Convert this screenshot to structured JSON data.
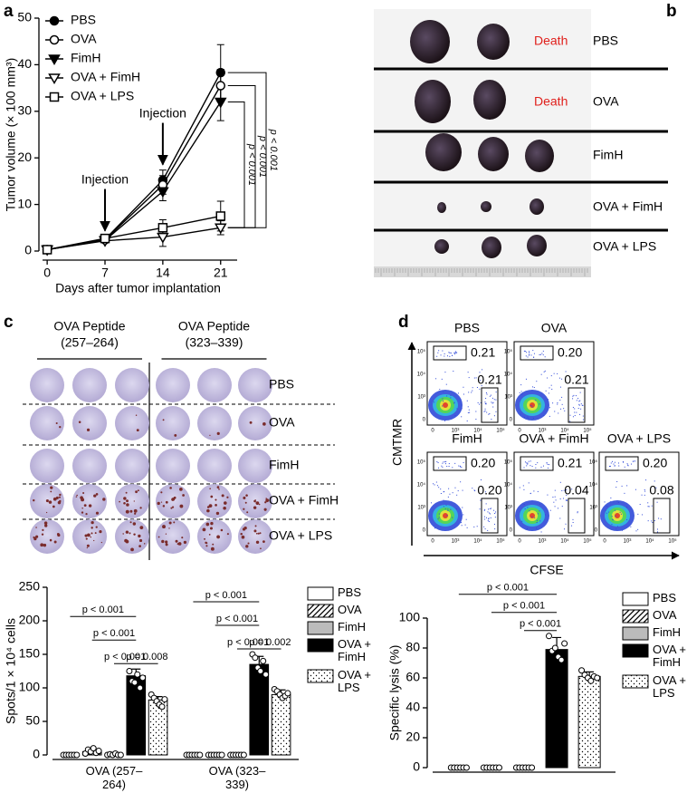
{
  "panel_labels": [
    "a",
    "b",
    "c",
    "d"
  ],
  "chart_data": [
    {
      "type": "line",
      "xlabel": "Days after tumor implantation",
      "ylabel": "Tumor volume (× 100 mm³)",
      "x": [
        0,
        7,
        14,
        21
      ],
      "xlim": [
        -1,
        23
      ],
      "xticks": [
        0,
        7,
        14,
        21
      ],
      "ylim": [
        0,
        50
      ],
      "yticks": [
        0,
        10,
        20,
        30,
        40,
        50
      ],
      "series": [
        {
          "name": "PBS",
          "color": "#000000",
          "marker": "circle",
          "filled": true,
          "values": [
            0.3,
            2.5,
            15.2,
            38.3
          ],
          "errors": [
            0,
            0.3,
            2.2,
            6
          ]
        },
        {
          "name": "OVA",
          "color": "#000000",
          "marker": "circle",
          "filled": false,
          "values": [
            0.3,
            2.4,
            14.2,
            35.5
          ],
          "errors": [
            0,
            0.3,
            2,
            3.5
          ]
        },
        {
          "name": "FimH",
          "color": "#000000",
          "marker": "triangle-down",
          "filled": true,
          "values": [
            0.3,
            2.3,
            12.8,
            32
          ],
          "errors": [
            0,
            0.3,
            2,
            4
          ]
        },
        {
          "name": "OVA + FimH",
          "color": "#000000",
          "marker": "triangle-down",
          "filled": false,
          "values": [
            0.3,
            2.2,
            3,
            5
          ],
          "errors": [
            0,
            0.4,
            2,
            1.5
          ]
        },
        {
          "name": "OVA + LPS",
          "color": "#000000",
          "marker": "square",
          "filled": false,
          "values": [
            0.3,
            2.7,
            5,
            7.5
          ],
          "errors": [
            0,
            0.5,
            1.7,
            3.2
          ]
        }
      ],
      "annotations": [
        "Injection",
        "Injection"
      ],
      "p_values": [
        "p < 0.001",
        "p < 0.001",
        "p < 0.001"
      ]
    },
    {
      "type": "bar",
      "ylabel": "Spots/1 × 10⁴ cells",
      "categories": [
        "OVA (257–264)",
        "OVA (323–339)"
      ],
      "ylim": [
        0,
        250
      ],
      "yticks": [
        0,
        50,
        100,
        150,
        200,
        250
      ],
      "series": [
        {
          "name": "PBS",
          "color": "#ffffff",
          "pattern": "solid",
          "values": [
            0,
            0
          ],
          "errors": [
            0,
            0
          ],
          "points": [
            [
              0,
              0,
              0,
              0,
              0,
              0
            ],
            [
              0,
              0,
              0,
              0,
              0,
              0
            ]
          ]
        },
        {
          "name": "OVA",
          "color": "#ffffff",
          "pattern": "hatch",
          "values": [
            5,
            0
          ],
          "errors": [
            3,
            0
          ],
          "points": [
            [
              2,
              8,
              5,
              10,
              3,
              6
            ],
            [
              0,
              0,
              0,
              0,
              0,
              0
            ]
          ]
        },
        {
          "name": "FimH",
          "color": "#bbbbbb",
          "pattern": "solid",
          "values": [
            0,
            0
          ],
          "errors": [
            0,
            0
          ],
          "points": [
            [
              0,
              1,
              0,
              2,
              0,
              0
            ],
            [
              0,
              0,
              0,
              0,
              0,
              0
            ]
          ]
        },
        {
          "name": "OVA + FimH",
          "color": "#000000",
          "pattern": "solid",
          "values": [
            118,
            135
          ],
          "errors": [
            10,
            12
          ],
          "points": [
            [
              125,
              110,
              108,
              120,
              100,
              115
            ],
            [
              150,
              145,
              130,
              125,
              140,
              120
            ]
          ]
        },
        {
          "name": "OVA + LPS",
          "color": "#ffffff",
          "pattern": "dots",
          "values": [
            82,
            90
          ],
          "errors": [
            5,
            7
          ],
          "points": [
            [
              90,
              85,
              80,
              75,
              72,
              83
            ],
            [
              98,
              95,
              90,
              85,
              88,
              92
            ]
          ]
        }
      ],
      "p_values": [
        [
          "p < 0.001",
          "p < 0.001",
          "p < 0.001",
          "p = 0.008"
        ],
        [
          "p < 0.001",
          "p < 0.001",
          "p < 0.001",
          "p = 0.002"
        ]
      ]
    },
    {
      "type": "bar",
      "ylabel": "Specific lysis (%)",
      "categories": [
        null
      ],
      "ylim": [
        0,
        100
      ],
      "yticks": [
        0,
        20,
        40,
        60,
        80,
        100
      ],
      "series": [
        {
          "name": "PBS",
          "color": "#ffffff",
          "pattern": "solid",
          "values": [
            0
          ],
          "errors": [
            0
          ],
          "points": [
            [
              0,
              0,
              0,
              0,
              0,
              0
            ]
          ]
        },
        {
          "name": "OVA",
          "color": "#ffffff",
          "pattern": "hatch",
          "values": [
            0
          ],
          "errors": [
            0
          ],
          "points": [
            [
              0,
              0,
              0,
              0,
              0,
              0
            ]
          ]
        },
        {
          "name": "FimH",
          "color": "#bbbbbb",
          "pattern": "solid",
          "values": [
            0
          ],
          "errors": [
            0
          ],
          "points": [
            [
              0,
              0,
              0,
              0,
              0,
              0
            ]
          ]
        },
        {
          "name": "OVA + FimH",
          "color": "#000000",
          "pattern": "solid",
          "values": [
            79
          ],
          "errors": [
            8
          ],
          "points": [
            [
              88,
              78,
              80,
              74,
              72,
              83
            ]
          ]
        },
        {
          "name": "OVA + LPS",
          "color": "#ffffff",
          "pattern": "dots",
          "values": [
            61
          ],
          "errors": [
            3
          ],
          "points": [
            [
              65,
              62,
              60,
              58,
              61,
              60
            ]
          ]
        }
      ],
      "p_values": [
        [
          "p < 0.001",
          "p < 0.001",
          "p < 0.001"
        ]
      ]
    }
  ],
  "panel_b": {
    "rows": [
      {
        "label": "PBS",
        "note": "Death"
      },
      {
        "label": "OVA",
        "note": "Death"
      },
      {
        "label": "FimH"
      },
      {
        "label": "OVA + FimH"
      },
      {
        "label": "OVA + LPS"
      }
    ]
  },
  "panel_c_plates": {
    "columns": [
      {
        "title": "OVA Peptide",
        "range": "(257–264)"
      },
      {
        "title": "OVA Peptide",
        "range": "(323–339)"
      }
    ],
    "rows": [
      "PBS",
      "OVA",
      "FimH",
      "OVA + FimH",
      "OVA + LPS"
    ]
  },
  "panel_d_flow": {
    "y_axis_label": "CMTMR",
    "x_axis_label": "CFSE",
    "axis_ticks": [
      "0",
      "10³",
      "10⁴",
      "10⁵"
    ],
    "plots": [
      {
        "title": "PBS",
        "upper_gate": "0.21",
        "lower_gate": "0.21"
      },
      {
        "title": "OVA",
        "upper_gate": "0.20",
        "lower_gate": "0.21"
      },
      {
        "title": "FimH",
        "upper_gate": "0.20",
        "lower_gate": "0.20"
      },
      {
        "title": "OVA + FimH",
        "upper_gate": "0.21",
        "lower_gate": "0.04"
      },
      {
        "title": "OVA + LPS",
        "upper_gate": "0.20",
        "lower_gate": "0.08"
      }
    ]
  }
}
